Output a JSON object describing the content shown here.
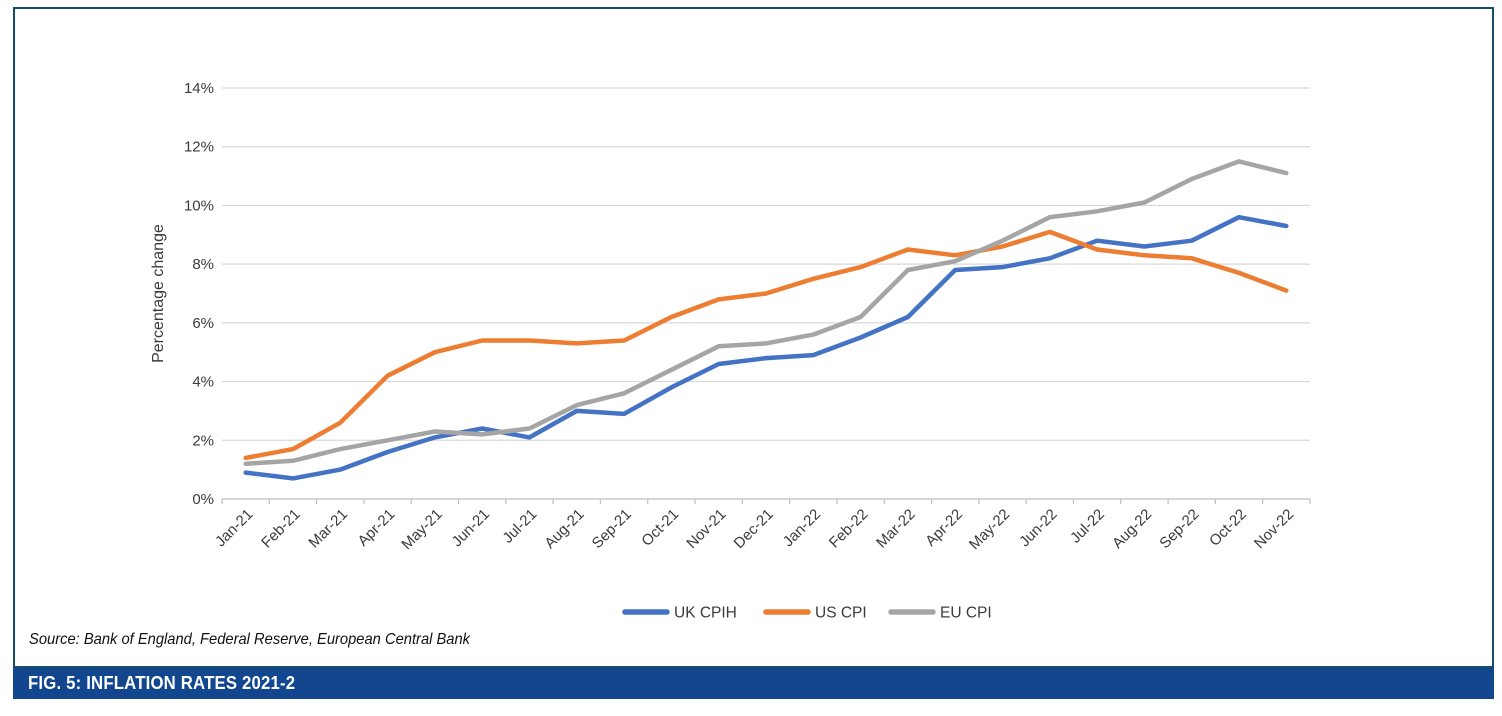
{
  "figure": {
    "caption": "FIG. 5: INFLATION RATES 2021-2",
    "source": "Source: Bank of England, Federal Reserve, European Central Bank"
  },
  "frame": {
    "border_color": "#164d66",
    "banner_color": "#12478f",
    "banner_text_color": "#ffffff"
  },
  "chart_data": {
    "type": "line",
    "title": "",
    "xlabel": "",
    "ylabel": "Percentage change",
    "ylim": [
      0,
      14
    ],
    "ytick_step": 2,
    "ytick_suffix": "%",
    "grid": true,
    "legend_position": "bottom",
    "categories": [
      "Jan-21",
      "Feb-21",
      "Mar-21",
      "Apr-21",
      "May-21",
      "Jun-21",
      "Jul-21",
      "Aug-21",
      "Sep-21",
      "Oct-21",
      "Nov-21",
      "Dec-21",
      "Jan-22",
      "Feb-22",
      "Mar-22",
      "Apr-22",
      "May-22",
      "Jun-22",
      "Jul-22",
      "Aug-22",
      "Sep-22",
      "Oct-22",
      "Nov-22"
    ],
    "series": [
      {
        "name": "UK CPIH",
        "color": "#4472C4",
        "values": [
          0.9,
          0.7,
          1.0,
          1.6,
          2.1,
          2.4,
          2.1,
          3.0,
          2.9,
          3.8,
          4.6,
          4.8,
          4.9,
          5.5,
          6.2,
          7.8,
          7.9,
          8.2,
          8.8,
          8.6,
          8.8,
          9.6,
          9.3
        ]
      },
      {
        "name": "US CPI",
        "color": "#ED7D31",
        "values": [
          1.4,
          1.7,
          2.6,
          4.2,
          5.0,
          5.4,
          5.4,
          5.3,
          5.4,
          6.2,
          6.8,
          7.0,
          7.5,
          7.9,
          8.5,
          8.3,
          8.6,
          9.1,
          8.5,
          8.3,
          8.2,
          7.7,
          7.1
        ]
      },
      {
        "name": "EU CPI",
        "color": "#A5A5A5",
        "values": [
          1.2,
          1.3,
          1.7,
          2.0,
          2.3,
          2.2,
          2.4,
          3.2,
          3.6,
          4.4,
          5.2,
          5.3,
          5.6,
          6.2,
          7.8,
          8.1,
          8.8,
          9.6,
          9.8,
          10.1,
          10.9,
          11.5,
          11.1
        ]
      }
    ],
    "style_colors": {
      "gridline": "#D9D9D9",
      "axis": "#BFBFBF",
      "tick_text": "#3B3B3B"
    }
  }
}
